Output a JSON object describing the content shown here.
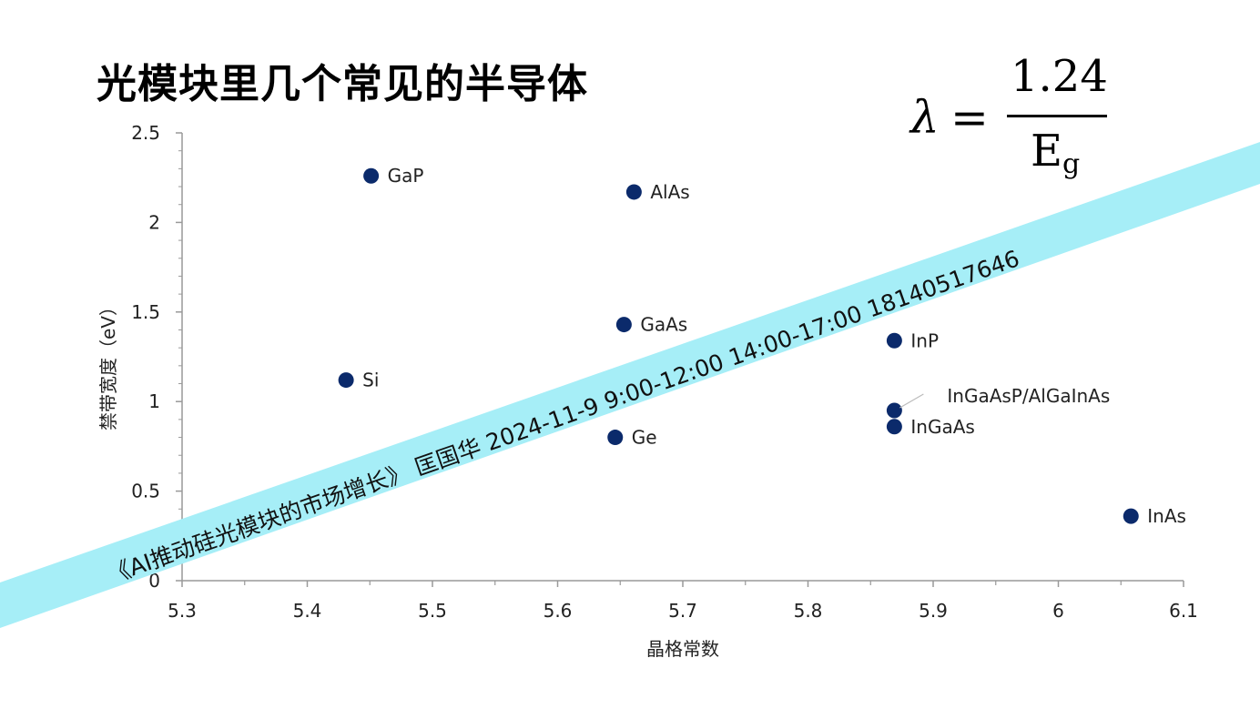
{
  "title": "光模块里几个常见的半导体",
  "formula": {
    "lhs": "λ",
    "eq": "=",
    "numerator": "1.24",
    "denominator_base": "E",
    "denominator_sub": "g"
  },
  "banner": {
    "text": "《AI推动硅光模块的市场增长》  匡国华  2024-11-9  9:00-12:00  14:00-17:00  18140517646",
    "color": "#a6eef7"
  },
  "chart_data": {
    "type": "scatter",
    "xlabel": "晶格常数",
    "ylabel": "禁带宽度（eV）",
    "xlim": [
      5.3,
      6.1
    ],
    "ylim": [
      0,
      2.5
    ],
    "xticks": [
      "5.3",
      "5.4",
      "5.5",
      "5.6",
      "5.7",
      "5.8",
      "5.9",
      "6",
      "6.1"
    ],
    "yticks": [
      "0",
      "0.5",
      "1",
      "1.5",
      "2",
      "2.5"
    ],
    "marker_color": "#0b2a6b",
    "points": [
      {
        "label": "GaP",
        "x": 5.451,
        "y": 2.26
      },
      {
        "label": "AlAs",
        "x": 5.661,
        "y": 2.17
      },
      {
        "label": "GaAs",
        "x": 5.653,
        "y": 1.43
      },
      {
        "label": "Si",
        "x": 5.431,
        "y": 1.12
      },
      {
        "label": "Ge",
        "x": 5.646,
        "y": 0.8
      },
      {
        "label": "InP",
        "x": 5.869,
        "y": 1.34
      },
      {
        "label": "InGaAsP/AlGaInAs",
        "x": 5.869,
        "y": 0.95
      },
      {
        "label": "InGaAs",
        "x": 5.869,
        "y": 0.86
      },
      {
        "label": "InAs",
        "x": 6.058,
        "y": 0.36
      }
    ]
  }
}
